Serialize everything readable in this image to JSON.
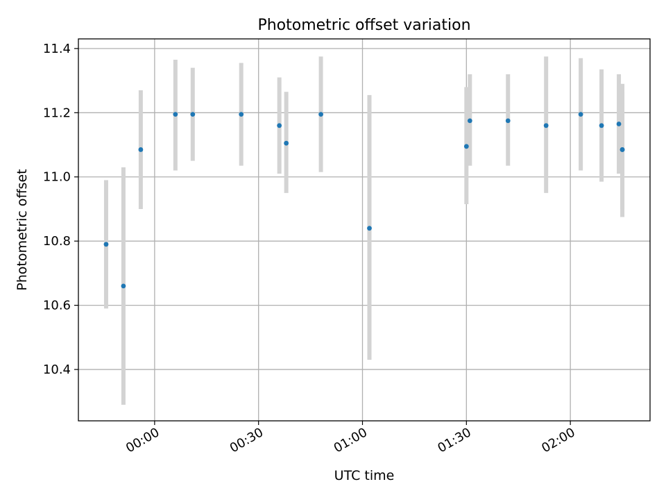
{
  "chart_data": {
    "type": "scatter",
    "title": "Photometric offset variation",
    "xlabel": "UTC time",
    "ylabel": "Photometric offset",
    "x_unit": "UTC time (HH:MM)",
    "xlim": [
      "-00:22",
      "02:23"
    ],
    "ylim": [
      10.24,
      11.43
    ],
    "x_ticks": [
      "00:00",
      "00:30",
      "01:00",
      "01:30",
      "02:00"
    ],
    "y_ticks": [
      10.4,
      10.6,
      10.8,
      11.0,
      11.2,
      11.4
    ],
    "y_tick_labels": [
      "10.4",
      "10.6",
      "10.8",
      "11.0",
      "11.2",
      "11.4"
    ],
    "grid": true,
    "point_color": "#1f77b4",
    "errorbar_color": "#d3d3d3",
    "series": [
      {
        "points": [
          {
            "x": "-00:14",
            "y": 10.79,
            "ylow": 10.59,
            "yhigh": 10.99
          },
          {
            "x": "-00:09",
            "y": 10.66,
            "ylow": 10.29,
            "yhigh": 11.03
          },
          {
            "x": "-00:04",
            "y": 11.085,
            "ylow": 10.9,
            "yhigh": 11.27
          },
          {
            "x": "00:06",
            "y": 11.195,
            "ylow": 11.02,
            "yhigh": 11.365
          },
          {
            "x": "00:11",
            "y": 11.195,
            "ylow": 11.05,
            "yhigh": 11.34
          },
          {
            "x": "00:25",
            "y": 11.195,
            "ylow": 11.035,
            "yhigh": 11.355
          },
          {
            "x": "00:36",
            "y": 11.16,
            "ylow": 11.01,
            "yhigh": 11.31
          },
          {
            "x": "00:38",
            "y": 11.105,
            "ylow": 10.95,
            "yhigh": 11.265
          },
          {
            "x": "00:48",
            "y": 11.195,
            "ylow": 11.015,
            "yhigh": 11.375
          },
          {
            "x": "01:02",
            "y": 10.84,
            "ylow": 10.43,
            "yhigh": 11.255
          },
          {
            "x": "01:30",
            "y": 11.095,
            "ylow": 10.915,
            "yhigh": 11.28
          },
          {
            "x": "01:31",
            "y": 11.175,
            "ylow": 11.035,
            "yhigh": 11.32
          },
          {
            "x": "01:42",
            "y": 11.175,
            "ylow": 11.035,
            "yhigh": 11.32
          },
          {
            "x": "01:53",
            "y": 11.16,
            "ylow": 10.95,
            "yhigh": 11.375
          },
          {
            "x": "02:03",
            "y": 11.195,
            "ylow": 11.02,
            "yhigh": 11.37
          },
          {
            "x": "02:09",
            "y": 11.16,
            "ylow": 10.985,
            "yhigh": 11.335
          },
          {
            "x": "02:14",
            "y": 11.165,
            "ylow": 11.01,
            "yhigh": 11.32
          },
          {
            "x": "02:15",
            "y": 11.085,
            "ylow": 10.9,
            "yhigh": 11.265
          },
          {
            "x": "02:15",
            "y": 11.085,
            "ylow": 10.875,
            "yhigh": 11.29
          }
        ]
      }
    ]
  }
}
